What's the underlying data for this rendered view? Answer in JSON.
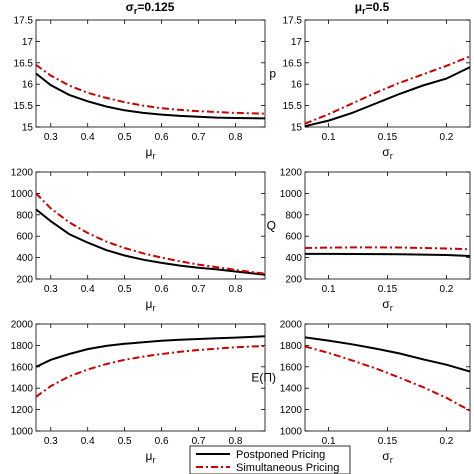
{
  "titles": {
    "left": {
      "sym": "σ",
      "sub": "r",
      "rest": "=0.125"
    },
    "right": {
      "sym": "μ",
      "sub": "r",
      "rest": "=0.5"
    }
  },
  "legend": {
    "items": [
      {
        "label": "Postponed Pricing",
        "color": "#000000",
        "dash": "solid"
      },
      {
        "label": "Simultaneous Pricing",
        "color": "#cc0000",
        "dash": "dashdot"
      }
    ]
  },
  "colors": {
    "postponed": "#000000",
    "simultaneous": "#cc0000"
  },
  "chart_data": [
    {
      "type": "line",
      "panel": "left-top",
      "xlabel": {
        "sym": "μ",
        "sub": "r"
      },
      "ylabel": "",
      "xlim": [
        0.26,
        0.88
      ],
      "ylim": [
        15,
        17.5
      ],
      "xticks": [
        0.3,
        0.4,
        0.5,
        0.6,
        0.7,
        0.8
      ],
      "yticks": [
        15,
        15.5,
        16,
        16.5,
        17,
        17.5
      ],
      "xticklabels": [
        "0.3",
        "0.4",
        "0.5",
        "0.6",
        "0.7",
        "0.8"
      ],
      "yticklabels": [
        "15",
        "15.5",
        "16",
        "16.5",
        "17",
        "17.5"
      ],
      "series": [
        {
          "name": "Postponed Pricing",
          "x": [
            0.26,
            0.3,
            0.35,
            0.4,
            0.45,
            0.5,
            0.55,
            0.6,
            0.65,
            0.7,
            0.75,
            0.8,
            0.88
          ],
          "y": [
            16.25,
            15.98,
            15.75,
            15.6,
            15.48,
            15.39,
            15.33,
            15.29,
            15.26,
            15.24,
            15.22,
            15.21,
            15.2
          ]
        },
        {
          "name": "Simultaneous Pricing",
          "x": [
            0.26,
            0.3,
            0.35,
            0.4,
            0.45,
            0.5,
            0.55,
            0.6,
            0.65,
            0.7,
            0.75,
            0.8,
            0.88
          ],
          "y": [
            16.45,
            16.2,
            15.97,
            15.8,
            15.68,
            15.58,
            15.5,
            15.44,
            15.4,
            15.37,
            15.35,
            15.33,
            15.31
          ]
        }
      ]
    },
    {
      "type": "line",
      "panel": "right-top",
      "xlabel": {
        "sym": "σ",
        "sub": "r"
      },
      "ylabel": "p",
      "xlim": [
        0.08,
        0.22
      ],
      "ylim": [
        15,
        17.5
      ],
      "xticks": [
        0.1,
        0.15,
        0.2
      ],
      "yticks": [
        15,
        15.5,
        16,
        16.5,
        17,
        17.5
      ],
      "xticklabels": [
        "0.1",
        "0.15",
        "0.2"
      ],
      "yticklabels": [
        "15",
        "15.5",
        "16",
        "16.5",
        "17",
        "17.5"
      ],
      "series": [
        {
          "name": "Postponed Pricing",
          "x": [
            0.08,
            0.1,
            0.12,
            0.14,
            0.16,
            0.18,
            0.2,
            0.22
          ],
          "y": [
            15.02,
            15.15,
            15.33,
            15.55,
            15.77,
            15.97,
            16.13,
            16.4
          ]
        },
        {
          "name": "Simultaneous Pricing",
          "x": [
            0.08,
            0.1,
            0.12,
            0.14,
            0.16,
            0.18,
            0.2,
            0.22
          ],
          "y": [
            15.08,
            15.3,
            15.55,
            15.8,
            16.03,
            16.23,
            16.43,
            16.65
          ]
        }
      ]
    },
    {
      "type": "line",
      "panel": "left-mid",
      "xlabel": {
        "sym": "μ",
        "sub": "r"
      },
      "ylabel": "",
      "xlim": [
        0.26,
        0.88
      ],
      "ylim": [
        200,
        1200
      ],
      "xticks": [
        0.3,
        0.4,
        0.5,
        0.6,
        0.7,
        0.8
      ],
      "yticks": [
        200,
        400,
        600,
        800,
        1000,
        1200
      ],
      "xticklabels": [
        "0.3",
        "0.4",
        "0.5",
        "0.6",
        "0.7",
        "0.8"
      ],
      "yticklabels": [
        "200",
        "400",
        "600",
        "800",
        "1000",
        "1200"
      ],
      "series": [
        {
          "name": "Postponed Pricing",
          "x": [
            0.26,
            0.3,
            0.35,
            0.4,
            0.45,
            0.5,
            0.55,
            0.6,
            0.65,
            0.7,
            0.75,
            0.8,
            0.88
          ],
          "y": [
            850,
            740,
            620,
            540,
            470,
            420,
            380,
            350,
            325,
            305,
            290,
            270,
            240
          ]
        },
        {
          "name": "Simultaneous Pricing",
          "x": [
            0.26,
            0.3,
            0.35,
            0.4,
            0.45,
            0.5,
            0.55,
            0.6,
            0.65,
            0.7,
            0.75,
            0.8,
            0.88
          ],
          "y": [
            1000,
            860,
            730,
            630,
            550,
            490,
            440,
            400,
            365,
            335,
            310,
            285,
            250
          ]
        }
      ]
    },
    {
      "type": "line",
      "panel": "right-mid",
      "xlabel": {
        "sym": "σ",
        "sub": "r"
      },
      "ylabel": "Q",
      "xlim": [
        0.08,
        0.22
      ],
      "ylim": [
        200,
        1200
      ],
      "xticks": [
        0.1,
        0.15,
        0.2
      ],
      "yticks": [
        200,
        400,
        600,
        800,
        1000,
        1200
      ],
      "xticklabels": [
        "0.1",
        "0.15",
        "0.2"
      ],
      "yticklabels": [
        "200",
        "400",
        "600",
        "800",
        "1000",
        "1200"
      ],
      "series": [
        {
          "name": "Postponed Pricing",
          "x": [
            0.08,
            0.1,
            0.12,
            0.14,
            0.16,
            0.18,
            0.2,
            0.22
          ],
          "y": [
            435,
            435,
            434,
            433,
            431,
            428,
            424,
            415
          ]
        },
        {
          "name": "Simultaneous Pricing",
          "x": [
            0.08,
            0.1,
            0.12,
            0.14,
            0.16,
            0.18,
            0.2,
            0.22
          ],
          "y": [
            490,
            493,
            495,
            495,
            494,
            490,
            485,
            478
          ]
        }
      ]
    },
    {
      "type": "line",
      "panel": "left-bottom",
      "xlabel": {
        "sym": "μ",
        "sub": "r"
      },
      "ylabel": "",
      "xlim": [
        0.26,
        0.88
      ],
      "ylim": [
        1000,
        2000
      ],
      "xticks": [
        0.3,
        0.4,
        0.5,
        0.6,
        0.7,
        0.8
      ],
      "yticks": [
        1000,
        1200,
        1400,
        1600,
        1800,
        2000
      ],
      "xticklabels": [
        "0.3",
        "0.4",
        "0.5",
        "0.6",
        "0.7",
        "0.8"
      ],
      "yticklabels": [
        "1000",
        "1200",
        "1400",
        "1600",
        "1800",
        "2000"
      ],
      "series": [
        {
          "name": "Postponed Pricing",
          "x": [
            0.26,
            0.3,
            0.35,
            0.4,
            0.45,
            0.5,
            0.55,
            0.6,
            0.65,
            0.7,
            0.75,
            0.8,
            0.88
          ],
          "y": [
            1600,
            1665,
            1720,
            1765,
            1795,
            1815,
            1830,
            1843,
            1853,
            1860,
            1867,
            1873,
            1885
          ]
        },
        {
          "name": "Simultaneous Pricing",
          "x": [
            0.26,
            0.3,
            0.35,
            0.4,
            0.45,
            0.5,
            0.55,
            0.6,
            0.65,
            0.7,
            0.75,
            0.8,
            0.88
          ],
          "y": [
            1320,
            1420,
            1510,
            1575,
            1625,
            1665,
            1695,
            1720,
            1740,
            1757,
            1770,
            1782,
            1795
          ]
        }
      ]
    },
    {
      "type": "line",
      "panel": "right-bottom",
      "xlabel": {
        "sym": "σ",
        "sub": "r"
      },
      "ylabel": "E(Π)",
      "xlim": [
        0.08,
        0.22
      ],
      "ylim": [
        1000,
        2000
      ],
      "xticks": [
        0.1,
        0.15,
        0.2
      ],
      "yticks": [
        1000,
        1200,
        1400,
        1600,
        1800,
        2000
      ],
      "xticklabels": [
        "0.1",
        "0.15",
        "0.2"
      ],
      "yticklabels": [
        "1000",
        "1200",
        "1400",
        "1600",
        "1800",
        "2000"
      ],
      "series": [
        {
          "name": "Postponed Pricing",
          "x": [
            0.08,
            0.1,
            0.12,
            0.14,
            0.16,
            0.18,
            0.2,
            0.22
          ],
          "y": [
            1875,
            1845,
            1810,
            1770,
            1725,
            1670,
            1620,
            1555
          ]
        },
        {
          "name": "Simultaneous Pricing",
          "x": [
            0.08,
            0.1,
            0.12,
            0.14,
            0.16,
            0.18,
            0.2,
            0.22
          ],
          "y": [
            1790,
            1730,
            1660,
            1585,
            1500,
            1410,
            1310,
            1190
          ]
        }
      ]
    }
  ]
}
